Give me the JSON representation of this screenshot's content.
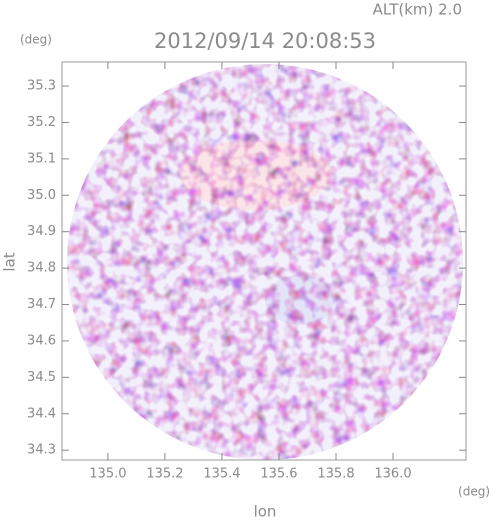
{
  "chart_data": {
    "type": "radar-map",
    "title": "2012/09/14 20:08:53",
    "altitude_label": "ALT(km) 2.0",
    "x_label": "lon",
    "y_label": "lat",
    "x_unit": "(deg)",
    "y_unit": "(deg)",
    "xlim": [
      134.839,
      136.256
    ],
    "ylim": [
      34.273,
      35.366
    ],
    "xticks": [
      {
        "value": 135.0,
        "label": "135.0"
      },
      135.2,
      135.4,
      135.6,
      135.8,
      {
        "value": 136.0,
        "label": "136.0"
      }
    ],
    "yticks": [
      34.3,
      34.4,
      34.5,
      34.6,
      34.7,
      34.8,
      34.9,
      {
        "value": 35.0,
        "label": "35.0"
      },
      35.1,
      35.2,
      35.3
    ]
  }
}
